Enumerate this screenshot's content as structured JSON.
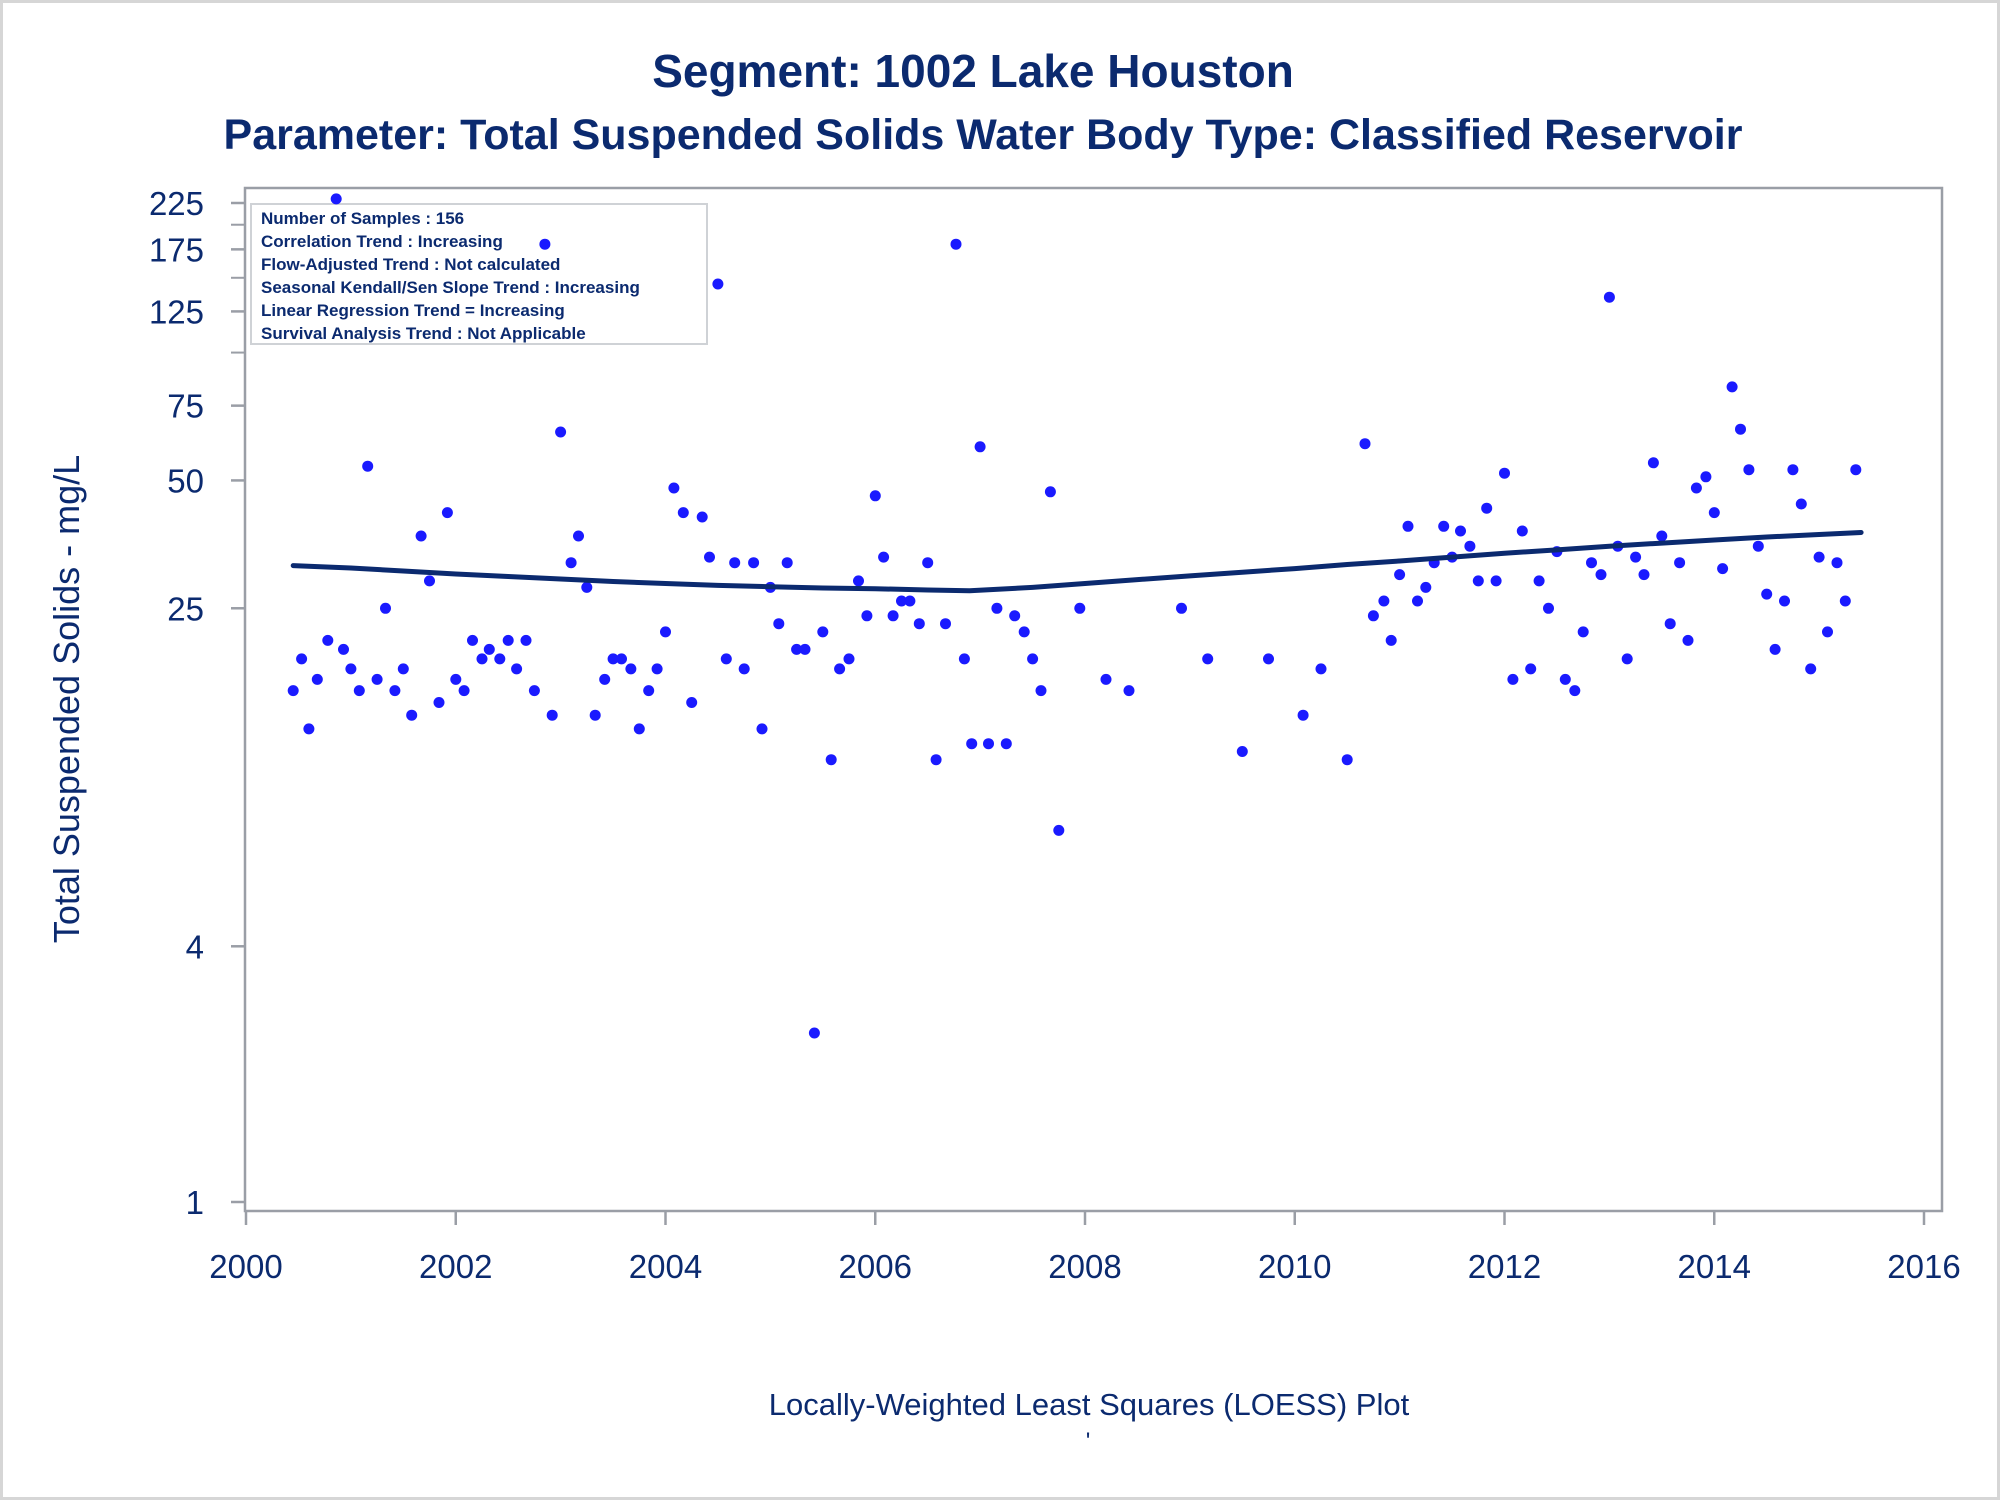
{
  "chart_data": {
    "type": "scatter",
    "title": "Segment: 1002  Lake Houston",
    "subtitle": "Parameter: Total Suspended Solids   Water Body Type: Classified Reservoir",
    "xlabel": "Locally-Weighted Least Squares (LOESS) Plot",
    "footnote": "'",
    "ylabel": "Total Suspended Solids - mg/L",
    "yscale": "log",
    "xlim": [
      2000,
      2016
    ],
    "ylim": [
      1,
      240
    ],
    "x_ticks": [
      "2000",
      "2002",
      "2004",
      "2006",
      "2008",
      "2010",
      "2012",
      "2014",
      "2016"
    ],
    "y_tick_values": [
      1,
      4,
      25,
      50,
      75,
      125,
      175,
      225
    ],
    "y_tick_labels": [
      "1",
      "4",
      "25",
      "50",
      "75",
      "125",
      "175",
      "225"
    ],
    "y_minor_ticks": [
      100,
      150,
      200
    ],
    "grid": false,
    "stats_box": {
      "placement": "top-left",
      "lines": [
        "Number of Samples : 156",
        "Correlation Trend : Increasing",
        "Flow-Adjusted Trend : Not calculated",
        "Seasonal Kendall/Sen Slope Trend : Increasing",
        "Linear Regression Trend = Increasing",
        "Survival Analysis Trend : Not Applicable"
      ]
    },
    "colors": {
      "points": "#1a1aff",
      "loess_line": "#0b2a6f",
      "text": "#0b2a6f",
      "axis": "#9a9ea6"
    },
    "series": [
      {
        "type": "scatter",
        "points": [
          [
            2000.45,
            16
          ],
          [
            2000.53,
            19
          ],
          [
            2000.6,
            13
          ],
          [
            2000.68,
            17
          ],
          [
            2000.78,
            21
          ],
          [
            2000.86,
            230
          ],
          [
            2000.93,
            20
          ],
          [
            2001.0,
            18
          ],
          [
            2001.08,
            16
          ],
          [
            2001.16,
            54
          ],
          [
            2001.25,
            17
          ],
          [
            2001.33,
            25
          ],
          [
            2001.42,
            16
          ],
          [
            2001.5,
            18
          ],
          [
            2001.58,
            14
          ],
          [
            2001.67,
            37
          ],
          [
            2001.75,
            29
          ],
          [
            2001.84,
            15
          ],
          [
            2001.92,
            42
          ],
          [
            2002.0,
            17
          ],
          [
            2002.08,
            16
          ],
          [
            2002.16,
            21
          ],
          [
            2002.25,
            19
          ],
          [
            2002.32,
            20
          ],
          [
            2002.42,
            19
          ],
          [
            2002.5,
            21
          ],
          [
            2002.58,
            18
          ],
          [
            2002.67,
            21
          ],
          [
            2002.75,
            16
          ],
          [
            2002.85,
            180
          ],
          [
            2002.92,
            14
          ],
          [
            2003.0,
            65
          ],
          [
            2003.1,
            32
          ],
          [
            2003.17,
            37
          ],
          [
            2003.25,
            28
          ],
          [
            2003.33,
            14
          ],
          [
            2003.42,
            17
          ],
          [
            2003.5,
            19
          ],
          [
            2003.58,
            19
          ],
          [
            2003.67,
            18
          ],
          [
            2003.75,
            13
          ],
          [
            2003.84,
            16
          ],
          [
            2003.92,
            18
          ],
          [
            2004.0,
            22
          ],
          [
            2004.08,
            48
          ],
          [
            2004.17,
            42
          ],
          [
            2004.25,
            15
          ],
          [
            2004.35,
            41
          ],
          [
            2004.42,
            33
          ],
          [
            2004.5,
            145
          ],
          [
            2004.58,
            19
          ],
          [
            2004.66,
            32
          ],
          [
            2004.75,
            18
          ],
          [
            2004.84,
            32
          ],
          [
            2004.92,
            13
          ],
          [
            2005.0,
            28
          ],
          [
            2005.08,
            23
          ],
          [
            2005.16,
            32
          ],
          [
            2005.25,
            20
          ],
          [
            2005.33,
            20
          ],
          [
            2005.42,
            2.5
          ],
          [
            2005.5,
            22
          ],
          [
            2005.58,
            11
          ],
          [
            2005.66,
            18
          ],
          [
            2005.75,
            19
          ],
          [
            2005.84,
            29
          ],
          [
            2005.92,
            24
          ],
          [
            2006.0,
            46
          ],
          [
            2006.08,
            33
          ],
          [
            2006.17,
            24
          ],
          [
            2006.25,
            26
          ],
          [
            2006.33,
            26
          ],
          [
            2006.42,
            23
          ],
          [
            2006.5,
            32
          ],
          [
            2006.58,
            11
          ],
          [
            2006.67,
            23
          ],
          [
            2006.77,
            180
          ],
          [
            2006.85,
            19
          ],
          [
            2006.92,
            12
          ],
          [
            2007.0,
            60
          ],
          [
            2007.08,
            12
          ],
          [
            2007.16,
            25
          ],
          [
            2007.25,
            12
          ],
          [
            2007.33,
            24
          ],
          [
            2007.42,
            22
          ],
          [
            2007.5,
            19
          ],
          [
            2007.58,
            16
          ],
          [
            2007.67,
            47
          ],
          [
            2007.75,
            7.5
          ],
          [
            2007.95,
            25
          ],
          [
            2008.2,
            17
          ],
          [
            2008.42,
            16
          ],
          [
            2008.92,
            25
          ],
          [
            2009.17,
            19
          ],
          [
            2009.5,
            11.5
          ],
          [
            2009.75,
            19
          ],
          [
            2010.08,
            14
          ],
          [
            2010.25,
            18
          ],
          [
            2010.5,
            11
          ],
          [
            2010.67,
            61
          ],
          [
            2010.75,
            24
          ],
          [
            2010.85,
            26
          ],
          [
            2010.92,
            21
          ],
          [
            2011.0,
            30
          ],
          [
            2011.08,
            39
          ],
          [
            2011.17,
            26
          ],
          [
            2011.25,
            28
          ],
          [
            2011.33,
            32
          ],
          [
            2011.42,
            39
          ],
          [
            2011.5,
            33
          ],
          [
            2011.58,
            38
          ],
          [
            2011.67,
            35
          ],
          [
            2011.75,
            29
          ],
          [
            2011.83,
            43
          ],
          [
            2011.92,
            29
          ],
          [
            2012.0,
            52
          ],
          [
            2012.08,
            17
          ],
          [
            2012.17,
            38
          ],
          [
            2012.25,
            18
          ],
          [
            2012.33,
            29
          ],
          [
            2012.42,
            25
          ],
          [
            2012.5,
            34
          ],
          [
            2012.58,
            17
          ],
          [
            2012.67,
            16
          ],
          [
            2012.75,
            22
          ],
          [
            2012.83,
            32
          ],
          [
            2012.92,
            30
          ],
          [
            2013.0,
            135
          ],
          [
            2013.08,
            35
          ],
          [
            2013.17,
            19
          ],
          [
            2013.25,
            33
          ],
          [
            2013.33,
            30
          ],
          [
            2013.42,
            55
          ],
          [
            2013.5,
            37
          ],
          [
            2013.58,
            23
          ],
          [
            2013.67,
            32
          ],
          [
            2013.75,
            21
          ],
          [
            2013.83,
            48
          ],
          [
            2013.92,
            51
          ],
          [
            2014.0,
            42
          ],
          [
            2014.08,
            31
          ],
          [
            2014.17,
            83
          ],
          [
            2014.25,
            66
          ],
          [
            2014.33,
            53
          ],
          [
            2014.42,
            35
          ],
          [
            2014.5,
            27
          ],
          [
            2014.58,
            20
          ],
          [
            2014.67,
            26
          ],
          [
            2014.75,
            53
          ],
          [
            2014.83,
            44
          ],
          [
            2014.92,
            18
          ],
          [
            2015.0,
            33
          ],
          [
            2015.08,
            22
          ],
          [
            2015.17,
            32
          ],
          [
            2015.25,
            26
          ],
          [
            2015.35,
            53
          ]
        ]
      },
      {
        "type": "line",
        "points": [
          [
            2000.45,
            31.5
          ],
          [
            2001.0,
            31.1
          ],
          [
            2001.5,
            30.6
          ],
          [
            2002.0,
            30.1
          ],
          [
            2002.5,
            29.7
          ],
          [
            2003.0,
            29.3
          ],
          [
            2003.5,
            28.9
          ],
          [
            2004.0,
            28.6
          ],
          [
            2004.5,
            28.3
          ],
          [
            2005.0,
            28.1
          ],
          [
            2005.5,
            27.9
          ],
          [
            2006.0,
            27.8
          ],
          [
            2006.5,
            27.6
          ],
          [
            2006.9,
            27.5
          ],
          [
            2007.5,
            28.0
          ],
          [
            2008.0,
            28.6
          ],
          [
            2008.5,
            29.2
          ],
          [
            2009.0,
            29.8
          ],
          [
            2009.5,
            30.4
          ],
          [
            2010.0,
            31.0
          ],
          [
            2010.5,
            31.7
          ],
          [
            2011.0,
            32.3
          ],
          [
            2011.5,
            33.0
          ],
          [
            2012.0,
            33.7
          ],
          [
            2012.5,
            34.3
          ],
          [
            2013.0,
            35.0
          ],
          [
            2013.5,
            35.6
          ],
          [
            2014.0,
            36.2
          ],
          [
            2014.5,
            36.8
          ],
          [
            2015.0,
            37.3
          ],
          [
            2015.4,
            37.7
          ]
        ]
      }
    ]
  }
}
